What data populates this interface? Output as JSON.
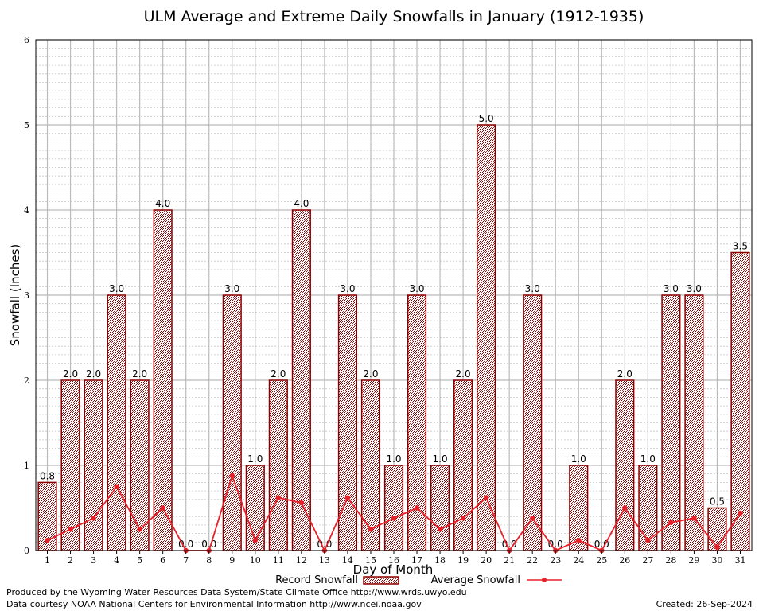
{
  "chart_data": {
    "type": "bar",
    "title": "ULM Average and Extreme Daily Snowfalls in January (1912-1935)",
    "xlabel": "Day of Month",
    "ylabel": "Snowfall (Inches)",
    "ylim": [
      0,
      6
    ],
    "yticks": [
      0,
      1,
      2,
      3,
      4,
      5,
      6
    ],
    "categories": [
      "1",
      "2",
      "3",
      "4",
      "5",
      "6",
      "7",
      "8",
      "9",
      "10",
      "11",
      "12",
      "13",
      "14",
      "15",
      "16",
      "17",
      "18",
      "19",
      "20",
      "21",
      "22",
      "23",
      "24",
      "25",
      "26",
      "27",
      "28",
      "29",
      "30",
      "31"
    ],
    "series": [
      {
        "name": "Record Snowfall",
        "kind": "bar",
        "values": [
          0.8,
          2.0,
          2.0,
          3.0,
          2.0,
          4.0,
          0.0,
          0.0,
          3.0,
          1.0,
          2.0,
          4.0,
          0.0,
          3.0,
          2.0,
          1.0,
          3.0,
          1.0,
          2.0,
          5.0,
          0.0,
          3.0,
          0.0,
          1.0,
          0.0,
          2.0,
          1.0,
          3.0,
          3.0,
          0.5,
          3.5
        ],
        "labels": [
          "0.8",
          "2.0",
          "2.0",
          "3.0",
          "2.0",
          "4.0",
          "0.0",
          "0.0",
          "3.0",
          "1.0",
          "2.0",
          "4.0",
          "0.0",
          "3.0",
          "2.0",
          "1.0",
          "3.0",
          "1.0",
          "2.0",
          "5.0",
          "0.0",
          "3.0",
          "0.0",
          "1.0",
          "0.0",
          "2.0",
          "1.0",
          "3.0",
          "3.0",
          "0.5",
          "3.5"
        ]
      },
      {
        "name": "Average Snowfall",
        "kind": "line",
        "values": [
          0.12,
          0.25,
          0.38,
          0.75,
          0.25,
          0.5,
          0.0,
          0.0,
          0.88,
          0.12,
          0.62,
          0.56,
          0.0,
          0.62,
          0.25,
          0.38,
          0.5,
          0.25,
          0.38,
          0.62,
          0.0,
          0.38,
          0.0,
          0.12,
          0.0,
          0.5,
          0.12,
          0.33,
          0.38,
          0.04,
          0.44
        ]
      }
    ],
    "grid": true,
    "legend": "bottom-center"
  },
  "colors": {
    "bar_fill": "#c8a8a8",
    "bar_stroke": "#8b0000",
    "line": "#e8202a",
    "grid_major": "#bbbbbb",
    "grid_minor": "#c8c8c8"
  },
  "footer": {
    "produced_by": "Produced by the Wyoming Water Resources Data System/State Climate Office http://www.wrds.uwyo.edu",
    "courtesy": "Data courtesy NOAA National Centers for Environmental Information http://www.ncei.noaa.gov",
    "created": "Created:  26-Sep-2024"
  }
}
